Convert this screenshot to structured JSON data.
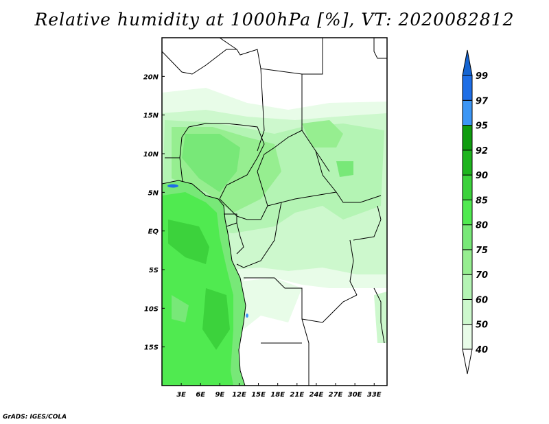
{
  "title": "Relative humidity at 1000hPa [%], VT: 2020082812",
  "credit": "GrADS: IGES/COLA",
  "map": {
    "variable": "Relative humidity",
    "level": "1000hPa",
    "units": "%",
    "valid_time": "2020082812",
    "lon_range": [
      0,
      35
    ],
    "lat_range": [
      -20,
      25
    ],
    "lon_ticks": [
      {
        "value": 3,
        "label": "3E"
      },
      {
        "value": 6,
        "label": "6E"
      },
      {
        "value": 9,
        "label": "9E"
      },
      {
        "value": 12,
        "label": "12E"
      },
      {
        "value": 15,
        "label": "15E"
      },
      {
        "value": 18,
        "label": "18E"
      },
      {
        "value": 21,
        "label": "21E"
      },
      {
        "value": 24,
        "label": "24E"
      },
      {
        "value": 27,
        "label": "27E"
      },
      {
        "value": 30,
        "label": "30E"
      },
      {
        "value": 33,
        "label": "33E"
      }
    ],
    "lat_ticks": [
      {
        "value": 20,
        "label": "20N"
      },
      {
        "value": 15,
        "label": "15N"
      },
      {
        "value": 10,
        "label": "10N"
      },
      {
        "value": 5,
        "label": "5N"
      },
      {
        "value": 0,
        "label": "EQ"
      },
      {
        "value": -5,
        "label": "5S"
      },
      {
        "value": -10,
        "label": "10S"
      },
      {
        "value": -15,
        "label": "15S"
      }
    ]
  },
  "colorbar": {
    "levels": [
      "40",
      "50",
      "60",
      "70",
      "75",
      "80",
      "85",
      "90",
      "92",
      "95",
      "97",
      "99"
    ],
    "colors": [
      "#ffffff",
      "#e8fce8",
      "#cdf8cd",
      "#b4f4b4",
      "#96ee90",
      "#78e878",
      "#50ea50",
      "#3cd23c",
      "#1eb41e",
      "#0f9c0f",
      "#3c96f5",
      "#1e6ee6",
      "#1464d2"
    ]
  }
}
